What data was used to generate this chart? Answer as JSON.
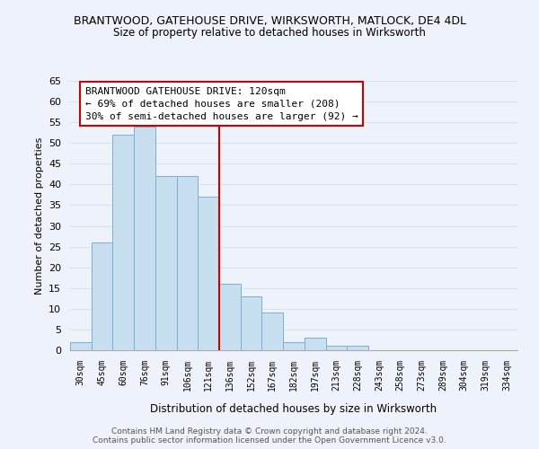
{
  "title": "BRANTWOOD, GATEHOUSE DRIVE, WIRKSWORTH, MATLOCK, DE4 4DL",
  "subtitle": "Size of property relative to detached houses in Wirksworth",
  "xlabel": "Distribution of detached houses by size in Wirksworth",
  "ylabel": "Number of detached properties",
  "bar_color": "#c8dff0",
  "bar_edge_color": "#7ab0d4",
  "bin_labels": [
    "30sqm",
    "45sqm",
    "60sqm",
    "76sqm",
    "91sqm",
    "106sqm",
    "121sqm",
    "136sqm",
    "152sqm",
    "167sqm",
    "182sqm",
    "197sqm",
    "213sqm",
    "228sqm",
    "243sqm",
    "258sqm",
    "273sqm",
    "289sqm",
    "304sqm",
    "319sqm",
    "334sqm"
  ],
  "bar_values": [
    2,
    26,
    52,
    54,
    42,
    42,
    37,
    16,
    13,
    9,
    2,
    3,
    1,
    1,
    0,
    0,
    0,
    0,
    0,
    0,
    0
  ],
  "ylim": [
    0,
    65
  ],
  "yticks": [
    0,
    5,
    10,
    15,
    20,
    25,
    30,
    35,
    40,
    45,
    50,
    55,
    60,
    65
  ],
  "vline_index": 6,
  "vline_color": "#cc0000",
  "annotation_text": "BRANTWOOD GATEHOUSE DRIVE: 120sqm\n← 69% of detached houses are smaller (208)\n30% of semi-detached houses are larger (92) →",
  "annotation_box_color": "#ffffff",
  "annotation_box_edge": "#cc0000",
  "footer_line1": "Contains HM Land Registry data © Crown copyright and database right 2024.",
  "footer_line2": "Contains public sector information licensed under the Open Government Licence v3.0.",
  "background_color": "#eef2fa",
  "grid_color": "#d8e4f0"
}
